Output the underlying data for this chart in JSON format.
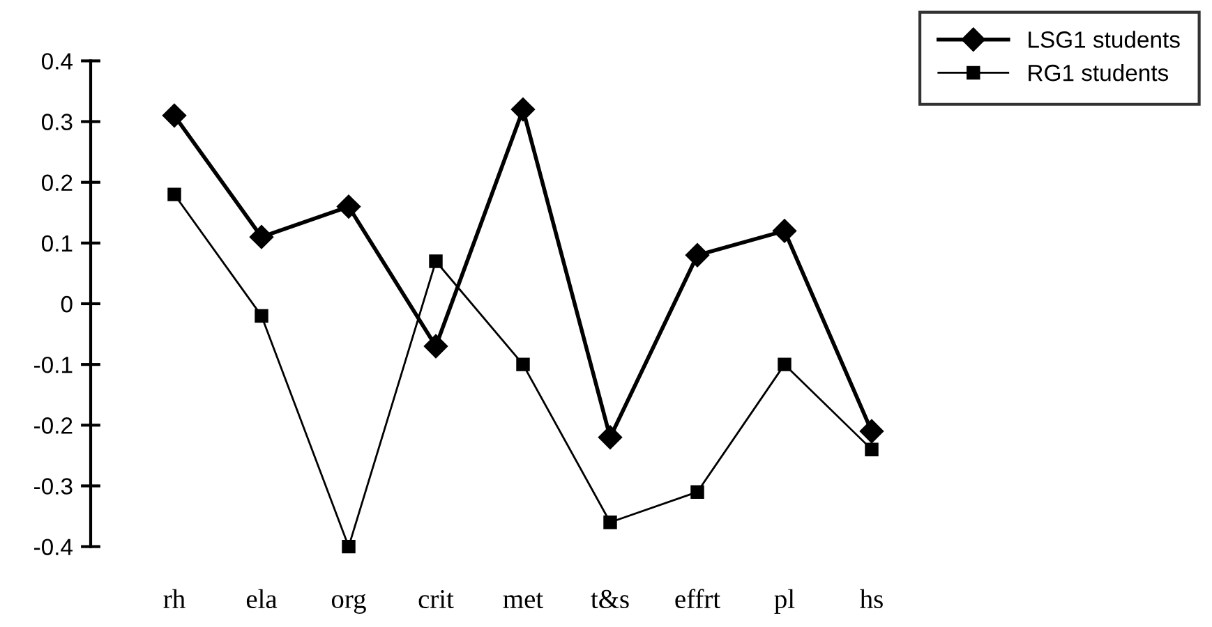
{
  "chart_data": {
    "type": "line",
    "categories": [
      "rh",
      "ela",
      "org",
      "crit",
      "met",
      "t&s",
      "effrt",
      "pl",
      "hs"
    ],
    "series": [
      {
        "name": "LSG1 students",
        "color": "#000000",
        "marker": "diamond",
        "values": [
          0.31,
          0.11,
          0.16,
          -0.07,
          0.32,
          -0.22,
          0.08,
          0.12,
          -0.21
        ]
      },
      {
        "name": "RG1 students",
        "color": "#000000",
        "marker": "square",
        "values": [
          0.18,
          -0.02,
          -0.4,
          0.07,
          -0.1,
          -0.36,
          -0.31,
          -0.1,
          -0.24
        ]
      }
    ],
    "ylim": [
      -0.4,
      0.4
    ],
    "yticks": [
      0.4,
      0.3,
      0.2,
      0.1,
      0,
      -0.1,
      -0.2,
      -0.3,
      -0.4
    ],
    "grid": false,
    "legend": "top right",
    "line_style": "solid"
  }
}
